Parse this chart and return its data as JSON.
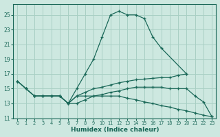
{
  "xlabel": "Humidex (Indice chaleur)",
  "bg_color": "#cde8e0",
  "grid_color": "#a8cfc4",
  "line_color": "#1a6858",
  "xlim": [
    -0.5,
    23.5
  ],
  "ylim": [
    11,
    26.5
  ],
  "yticks": [
    11,
    13,
    15,
    17,
    19,
    21,
    23,
    25
  ],
  "xticks": [
    0,
    1,
    2,
    3,
    4,
    5,
    6,
    7,
    8,
    9,
    10,
    11,
    12,
    13,
    14,
    15,
    16,
    17,
    18,
    19,
    20,
    21,
    22,
    23
  ],
  "line0_x": [
    0,
    1,
    2,
    3,
    4,
    5,
    6,
    7,
    8,
    9,
    10,
    11,
    12,
    13,
    14,
    15,
    16,
    17,
    20
  ],
  "line0_y": [
    16,
    15,
    14,
    14,
    14,
    14,
    13,
    15,
    17,
    19,
    22,
    25,
    25.5,
    25,
    25,
    24.5,
    22,
    20.5,
    17
  ],
  "line1_x": [
    0,
    1,
    2,
    3,
    4,
    5,
    6,
    7,
    8,
    9,
    10,
    11,
    12,
    13,
    14,
    15,
    16,
    17,
    18,
    19,
    20
  ],
  "line1_y": [
    16,
    15,
    14,
    14,
    14,
    14,
    13,
    14,
    14.5,
    15,
    15.2,
    15.5,
    15.8,
    16,
    16.2,
    16.3,
    16.4,
    16.5,
    16.5,
    16.8,
    17
  ],
  "line2_x": [
    0,
    1,
    2,
    3,
    4,
    5,
    6,
    7,
    8,
    9,
    10,
    11,
    12,
    13,
    14,
    15,
    16,
    17,
    18,
    19,
    20,
    21,
    22,
    23
  ],
  "line2_y": [
    16,
    15,
    14,
    14,
    14,
    14,
    13,
    14,
    14,
    14,
    14,
    14,
    14,
    13.7,
    13.5,
    13.2,
    13,
    12.7,
    12.5,
    12.2,
    12,
    11.7,
    11.4,
    11.2
  ],
  "line3_x": [
    2,
    3,
    4,
    5,
    6,
    7,
    8,
    9,
    10,
    11,
    12,
    13,
    14,
    15,
    16,
    17,
    18,
    19,
    20,
    21,
    22,
    23
  ],
  "line3_y": [
    14,
    14,
    14,
    14,
    13,
    13,
    13.5,
    14,
    14.2,
    14.5,
    14.7,
    15,
    15.2,
    15.2,
    15.2,
    15.2,
    15,
    15,
    15,
    14,
    13.2,
    11.2
  ]
}
